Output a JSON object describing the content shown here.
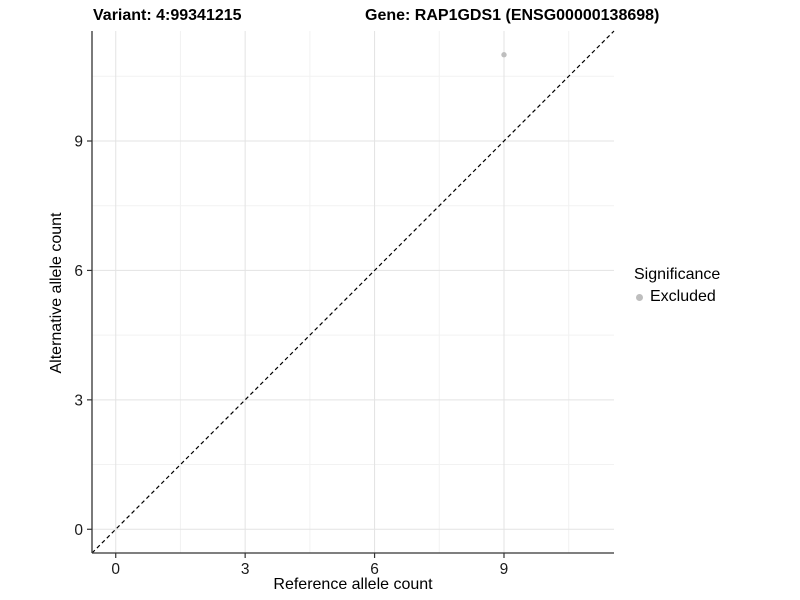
{
  "chart_data": {
    "type": "scatter",
    "title_left": "Variant: 4:99341215",
    "title_right": "Gene: RAP1GDS1 (ENSG00000138698)",
    "xlabel": "Reference allele count",
    "ylabel": "Alternative allele count",
    "xlim": [
      -0.55,
      11.55
    ],
    "ylim": [
      -0.55,
      11.55
    ],
    "xticks": [
      0,
      3,
      6,
      9
    ],
    "yticks": [
      0,
      3,
      6,
      9
    ],
    "xticks_minor": [
      1.5,
      4.5,
      7.5,
      10.5
    ],
    "yticks_minor": [
      1.5,
      4.5,
      7.5,
      10.5
    ],
    "grid": "major+minor",
    "reference_line": {
      "slope": 1,
      "intercept": 0,
      "style": "dashed"
    },
    "series": [
      {
        "name": "Excluded",
        "marker": "circle",
        "color": "#bebebe",
        "points": [
          {
            "x": 9,
            "y": 11
          }
        ]
      }
    ],
    "legend": {
      "title": "Significance",
      "position": "right",
      "entries": [
        {
          "label": "Excluded",
          "color": "#bebebe"
        }
      ]
    }
  },
  "colors": {
    "background": "#ffffff",
    "grid_major": "#e3e3e3",
    "grid_minor": "#f2f2f2",
    "axis_line": "#333333",
    "tick_mark": "#333333",
    "tick_label": "#1a1a1a",
    "text": "#000000",
    "point": "#bebebe",
    "reference_line": "#000000"
  }
}
